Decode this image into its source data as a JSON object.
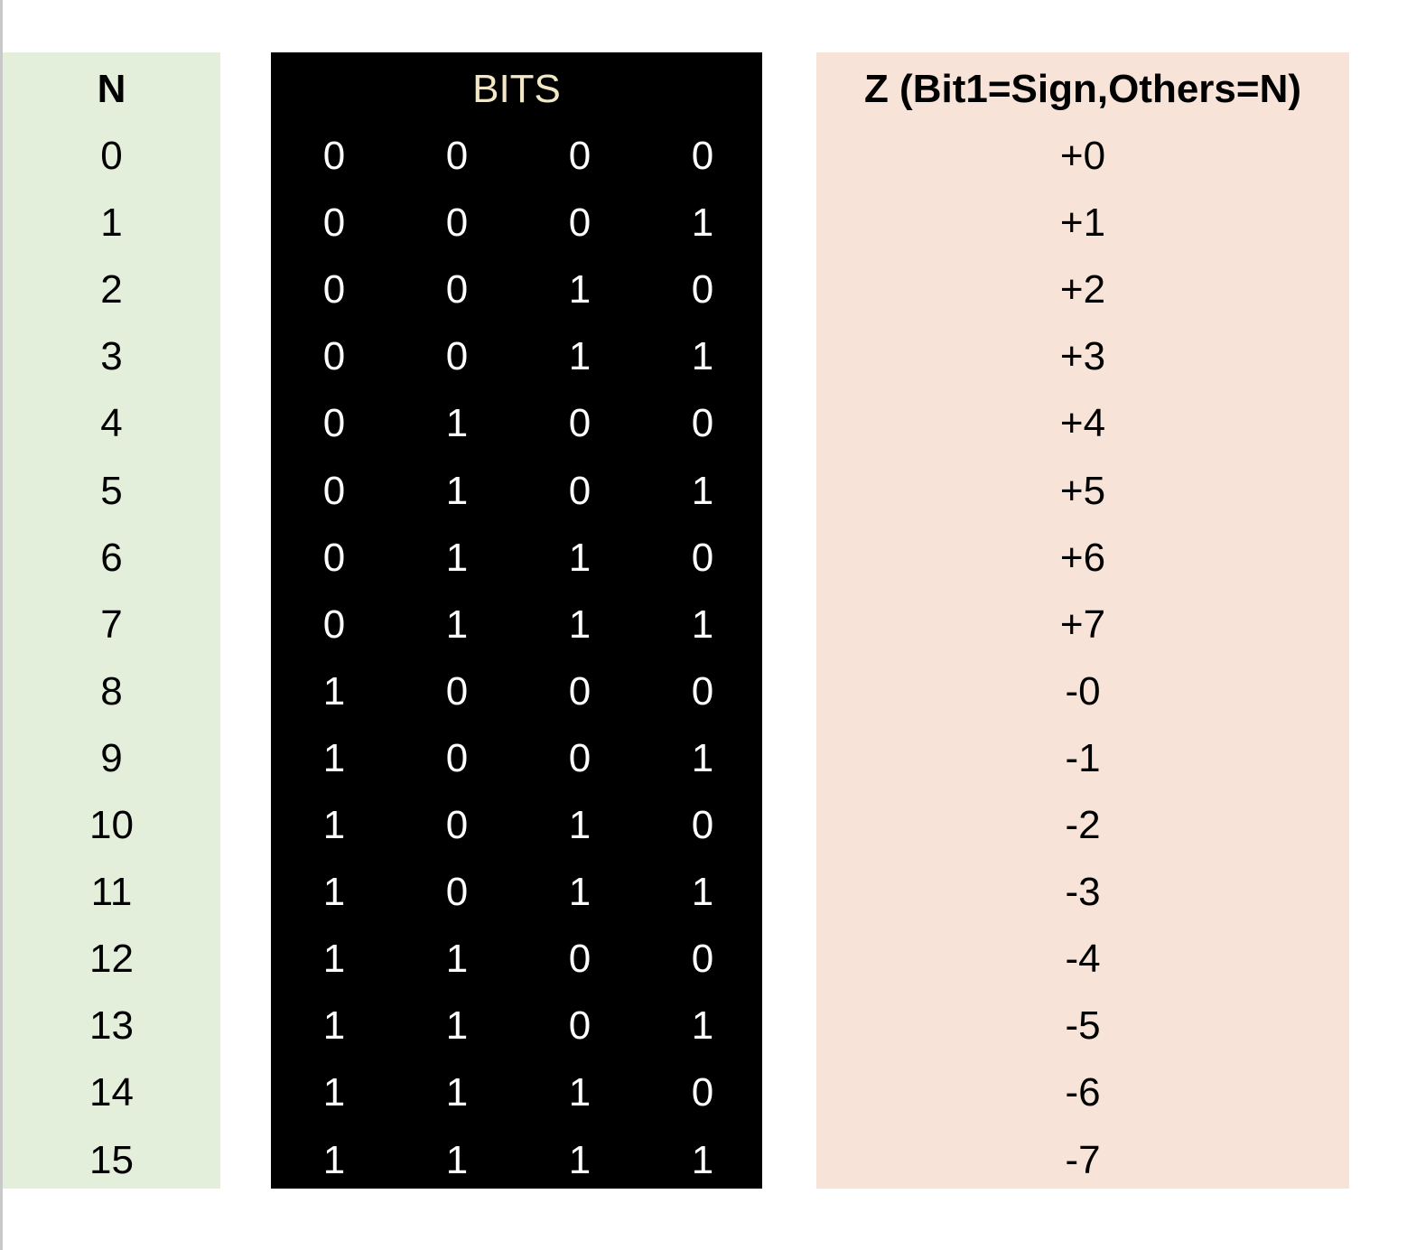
{
  "headers": {
    "n": "N",
    "bits": "BITS",
    "z": "Z (Bit1=Sign,Others=N)"
  },
  "rows": [
    {
      "n": "0",
      "bits": [
        "0",
        "0",
        "0",
        "0"
      ],
      "z": "+0"
    },
    {
      "n": "1",
      "bits": [
        "0",
        "0",
        "0",
        "1"
      ],
      "z": "+1"
    },
    {
      "n": "2",
      "bits": [
        "0",
        "0",
        "1",
        "0"
      ],
      "z": "+2"
    },
    {
      "n": "3",
      "bits": [
        "0",
        "0",
        "1",
        "1"
      ],
      "z": "+3"
    },
    {
      "n": "4",
      "bits": [
        "0",
        "1",
        "0",
        "0"
      ],
      "z": "+4"
    },
    {
      "n": "5",
      "bits": [
        "0",
        "1",
        "0",
        "1"
      ],
      "z": "+5"
    },
    {
      "n": "6",
      "bits": [
        "0",
        "1",
        "1",
        "0"
      ],
      "z": "+6"
    },
    {
      "n": "7",
      "bits": [
        "0",
        "1",
        "1",
        "1"
      ],
      "z": "+7"
    },
    {
      "n": "8",
      "bits": [
        "1",
        "0",
        "0",
        "0"
      ],
      "z": "-0"
    },
    {
      "n": "9",
      "bits": [
        "1",
        "0",
        "0",
        "1"
      ],
      "z": "-1"
    },
    {
      "n": "10",
      "bits": [
        "1",
        "0",
        "1",
        "0"
      ],
      "z": "-2"
    },
    {
      "n": "11",
      "bits": [
        "1",
        "0",
        "1",
        "1"
      ],
      "z": "-3"
    },
    {
      "n": "12",
      "bits": [
        "1",
        "1",
        "0",
        "0"
      ],
      "z": "-4"
    },
    {
      "n": "13",
      "bits": [
        "1",
        "1",
        "0",
        "1"
      ],
      "z": "-5"
    },
    {
      "n": "14",
      "bits": [
        "1",
        "1",
        "1",
        "0"
      ],
      "z": "-6"
    },
    {
      "n": "15",
      "bits": [
        "1",
        "1",
        "1",
        "1"
      ],
      "z": "-7"
    }
  ]
}
